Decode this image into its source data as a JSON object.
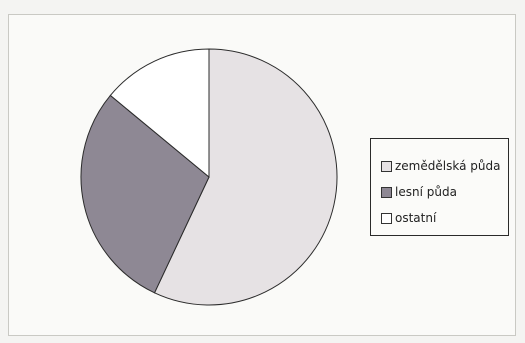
{
  "chart_data": {
    "type": "pie",
    "title": "",
    "slices": [
      {
        "label": "zemědělská půda",
        "value": 57,
        "color": "#e6e2e4"
      },
      {
        "label": "lesní půda",
        "value": 29,
        "color": "#8e8894"
      },
      {
        "label": "ostatní",
        "value": 14,
        "color": "#ffffff"
      }
    ],
    "start_angle_deg": 0,
    "direction": "clockwise",
    "legend_position": "right"
  }
}
